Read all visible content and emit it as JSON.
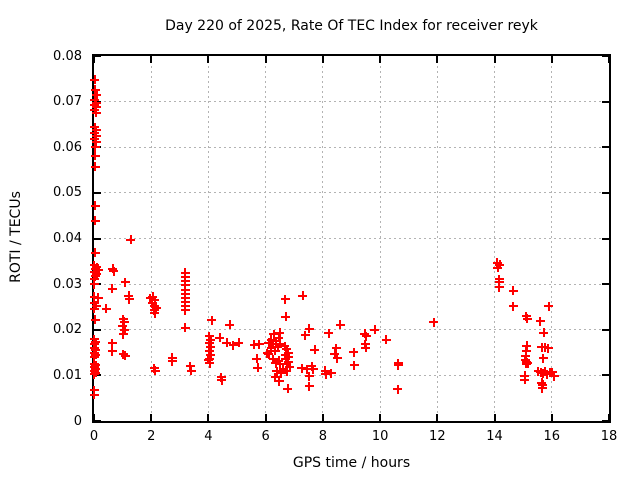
{
  "chart_data": {
    "type": "scatter",
    "title": "Day 220 of 2025, Rate Of TEC Index for receiver reyk",
    "xlabel": "GPS time / hours",
    "ylabel": "ROTI / TECUs",
    "xlim": [
      0,
      18
    ],
    "ylim": [
      0,
      0.08
    ],
    "xticks": [
      0,
      2,
      4,
      6,
      8,
      10,
      12,
      14,
      16,
      18
    ],
    "xtick_labels": [
      "0",
      "2",
      "4",
      "6",
      "8",
      "10",
      "12",
      "14",
      "16",
      "18"
    ],
    "yticks": [
      0,
      0.01,
      0.02,
      0.03,
      0.04,
      0.05,
      0.06,
      0.07,
      0.08
    ],
    "ytick_labels": [
      "0",
      "0.01",
      "0.02",
      "0.03",
      "0.04",
      "0.05",
      "0.06",
      "0.07",
      "0.08"
    ],
    "grid": true,
    "legend": "none",
    "grid_color": "#b3b3b3",
    "border_color": "#000000",
    "marker": {
      "shape": "plus",
      "color": "#ff0000",
      "size": 9,
      "stroke": 2
    },
    "points": [
      [
        0.03,
        0.0748
      ],
      [
        0.05,
        0.0726
      ],
      [
        0.1,
        0.0715
      ],
      [
        0.03,
        0.0704
      ],
      [
        0.07,
        0.0698
      ],
      [
        0.03,
        0.0693
      ],
      [
        0.07,
        0.0688
      ],
      [
        0.03,
        0.0682
      ],
      [
        0.07,
        0.0676
      ],
      [
        0.03,
        0.0644
      ],
      [
        0.07,
        0.0637
      ],
      [
        0.03,
        0.0631
      ],
      [
        0.07,
        0.0625
      ],
      [
        0.03,
        0.0619
      ],
      [
        0.07,
        0.0612
      ],
      [
        0.05,
        0.0601
      ],
      [
        0.05,
        0.0581
      ],
      [
        0.05,
        0.0557
      ],
      [
        0.05,
        0.0472
      ],
      [
        0.05,
        0.0439
      ],
      [
        0.05,
        0.0369
      ],
      [
        0.0,
        0.0341
      ],
      [
        0.1,
        0.0337
      ],
      [
        0.05,
        0.0333
      ],
      [
        0.16,
        0.033
      ],
      [
        0.0,
        0.0326
      ],
      [
        0.1,
        0.0322
      ],
      [
        0.05,
        0.0317
      ],
      [
        0.0,
        0.0312
      ],
      [
        0.0,
        0.03
      ],
      [
        0.0,
        0.0272
      ],
      [
        0.14,
        0.027
      ],
      [
        0.0,
        0.0259
      ],
      [
        0.08,
        0.0253
      ],
      [
        0.0,
        0.0246
      ],
      [
        0.05,
        0.0222
      ],
      [
        0.0,
        0.0179
      ],
      [
        0.06,
        0.0173
      ],
      [
        0.0,
        0.0168
      ],
      [
        0.0,
        0.016
      ],
      [
        0.06,
        0.0155
      ],
      [
        0.0,
        0.015
      ],
      [
        0.06,
        0.0145
      ],
      [
        0.0,
        0.014
      ],
      [
        0.0,
        0.0126
      ],
      [
        0.06,
        0.0122
      ],
      [
        0.0,
        0.0118
      ],
      [
        0.06,
        0.0114
      ],
      [
        0.0,
        0.011
      ],
      [
        0.06,
        0.0106
      ],
      [
        0.0,
        0.0102
      ],
      [
        0.0,
        0.0067
      ],
      [
        0.0,
        0.0058
      ],
      [
        0.43,
        0.0246
      ],
      [
        0.66,
        0.0334
      ],
      [
        0.69,
        0.0328
      ],
      [
        0.63,
        0.029
      ],
      [
        0.63,
        0.017
      ],
      [
        0.63,
        0.0153
      ],
      [
        1.1,
        0.0304
      ],
      [
        1.28,
        0.0397
      ],
      [
        1.21,
        0.0275
      ],
      [
        1.23,
        0.0267
      ],
      [
        1.02,
        0.0223
      ],
      [
        1.06,
        0.0217
      ],
      [
        1.0,
        0.0209
      ],
      [
        1.08,
        0.0199
      ],
      [
        1.02,
        0.019
      ],
      [
        1.02,
        0.0146
      ],
      [
        1.1,
        0.0143
      ],
      [
        1.97,
        0.0269
      ],
      [
        2.05,
        0.0272
      ],
      [
        2.12,
        0.0265
      ],
      [
        2.03,
        0.0258
      ],
      [
        2.1,
        0.0252
      ],
      [
        2.17,
        0.0248
      ],
      [
        2.1,
        0.0243
      ],
      [
        2.13,
        0.0236
      ],
      [
        2.1,
        0.0116
      ],
      [
        2.14,
        0.011
      ],
      [
        2.73,
        0.0139
      ],
      [
        2.73,
        0.0131
      ],
      [
        3.19,
        0.0325
      ],
      [
        3.19,
        0.0315
      ],
      [
        3.19,
        0.0306
      ],
      [
        3.19,
        0.0297
      ],
      [
        3.19,
        0.0288
      ],
      [
        3.19,
        0.0279
      ],
      [
        3.19,
        0.027
      ],
      [
        3.19,
        0.0261
      ],
      [
        3.19,
        0.0252
      ],
      [
        3.19,
        0.0243
      ],
      [
        3.19,
        0.0204
      ],
      [
        3.36,
        0.012
      ],
      [
        3.4,
        0.011
      ],
      [
        4.11,
        0.0221
      ],
      [
        4.03,
        0.0186
      ],
      [
        4.08,
        0.0178
      ],
      [
        4.03,
        0.0171
      ],
      [
        4.08,
        0.0162
      ],
      [
        4.03,
        0.0154
      ],
      [
        4.08,
        0.0145
      ],
      [
        4.03,
        0.0136
      ],
      [
        4.0,
        0.0134
      ],
      [
        4.05,
        0.0127
      ],
      [
        4.45,
        0.0096
      ],
      [
        4.46,
        0.0089
      ],
      [
        4.4,
        0.0182
      ],
      [
        4.64,
        0.0171
      ],
      [
        4.86,
        0.0166
      ],
      [
        5.06,
        0.0172
      ],
      [
        4.75,
        0.0211
      ],
      [
        5.6,
        0.0167
      ],
      [
        5.77,
        0.0168
      ],
      [
        5.68,
        0.0136
      ],
      [
        5.72,
        0.0117
      ],
      [
        6.06,
        0.0149
      ],
      [
        6.1,
        0.0171
      ],
      [
        6.1,
        0.0146
      ],
      [
        6.19,
        0.0159
      ],
      [
        6.2,
        0.0178
      ],
      [
        6.27,
        0.0168
      ],
      [
        6.27,
        0.0135
      ],
      [
        6.29,
        0.019
      ],
      [
        6.33,
        0.0154
      ],
      [
        6.33,
        0.0096
      ],
      [
        6.35,
        0.0175
      ],
      [
        6.35,
        0.0127
      ],
      [
        6.39,
        0.0109
      ],
      [
        6.42,
        0.0162
      ],
      [
        6.45,
        0.0182
      ],
      [
        6.45,
        0.0132
      ],
      [
        6.47,
        0.0087
      ],
      [
        6.5,
        0.0193
      ],
      [
        6.5,
        0.0169
      ],
      [
        6.5,
        0.0124
      ],
      [
        6.54,
        0.0105
      ],
      [
        6.62,
        0.0113
      ],
      [
        6.66,
        0.0164
      ],
      [
        6.68,
        0.0267
      ],
      [
        6.7,
        0.0228
      ],
      [
        6.7,
        0.0144
      ],
      [
        6.7,
        0.0135
      ],
      [
        6.74,
        0.0157
      ],
      [
        6.74,
        0.0124
      ],
      [
        6.74,
        0.0109
      ],
      [
        6.77,
        0.0071
      ],
      [
        6.79,
        0.0149
      ],
      [
        6.79,
        0.014
      ],
      [
        6.79,
        0.0129
      ],
      [
        6.85,
        0.0118
      ],
      [
        7.3,
        0.0274
      ],
      [
        7.38,
        0.0188
      ],
      [
        7.53,
        0.0202
      ],
      [
        7.72,
        0.0156
      ],
      [
        7.26,
        0.0116
      ],
      [
        7.44,
        0.0113
      ],
      [
        7.61,
        0.012
      ],
      [
        7.67,
        0.0113
      ],
      [
        7.52,
        0.0098
      ],
      [
        7.52,
        0.0076
      ],
      [
        8.08,
        0.011
      ],
      [
        8.1,
        0.0102
      ],
      [
        8.29,
        0.0105
      ],
      [
        8.2,
        0.0192
      ],
      [
        8.42,
        0.0147
      ],
      [
        8.46,
        0.016
      ],
      [
        8.5,
        0.0138
      ],
      [
        8.6,
        0.0211
      ],
      [
        9.07,
        0.0151
      ],
      [
        9.1,
        0.0122
      ],
      [
        9.47,
        0.0191
      ],
      [
        9.52,
        0.0186
      ],
      [
        9.48,
        0.0168
      ],
      [
        9.49,
        0.0161
      ],
      [
        9.82,
        0.02
      ],
      [
        10.21,
        0.0178
      ],
      [
        10.64,
        0.0127
      ],
      [
        10.64,
        0.0122
      ],
      [
        10.62,
        0.007
      ],
      [
        11.87,
        0.0216
      ],
      [
        14.1,
        0.0347
      ],
      [
        14.19,
        0.0342
      ],
      [
        14.11,
        0.0336
      ],
      [
        14.17,
        0.0311
      ],
      [
        14.17,
        0.0304
      ],
      [
        14.17,
        0.0293
      ],
      [
        14.65,
        0.0286
      ],
      [
        14.65,
        0.0252
      ],
      [
        15.11,
        0.023
      ],
      [
        15.15,
        0.0224
      ],
      [
        15.6,
        0.0219
      ],
      [
        15.9,
        0.0252
      ],
      [
        15.72,
        0.0193
      ],
      [
        15.12,
        0.0165
      ],
      [
        15.1,
        0.0154
      ],
      [
        15.09,
        0.0143
      ],
      [
        15.65,
        0.0162
      ],
      [
        15.76,
        0.0162
      ],
      [
        15.88,
        0.016
      ],
      [
        15.08,
        0.0134
      ],
      [
        15.13,
        0.0129
      ],
      [
        15.1,
        0.0125
      ],
      [
        15.16,
        0.0127
      ],
      [
        15.71,
        0.0137
      ],
      [
        15.53,
        0.0109
      ],
      [
        15.62,
        0.0107
      ],
      [
        15.7,
        0.0105
      ],
      [
        15.78,
        0.0108
      ],
      [
        15.85,
        0.0103
      ],
      [
        15.93,
        0.0106
      ],
      [
        16.02,
        0.0107
      ],
      [
        16.08,
        0.0098
      ],
      [
        15.06,
        0.0099
      ],
      [
        15.06,
        0.009
      ],
      [
        15.65,
        0.0084
      ],
      [
        15.69,
        0.0079
      ],
      [
        15.66,
        0.0072
      ]
    ]
  }
}
